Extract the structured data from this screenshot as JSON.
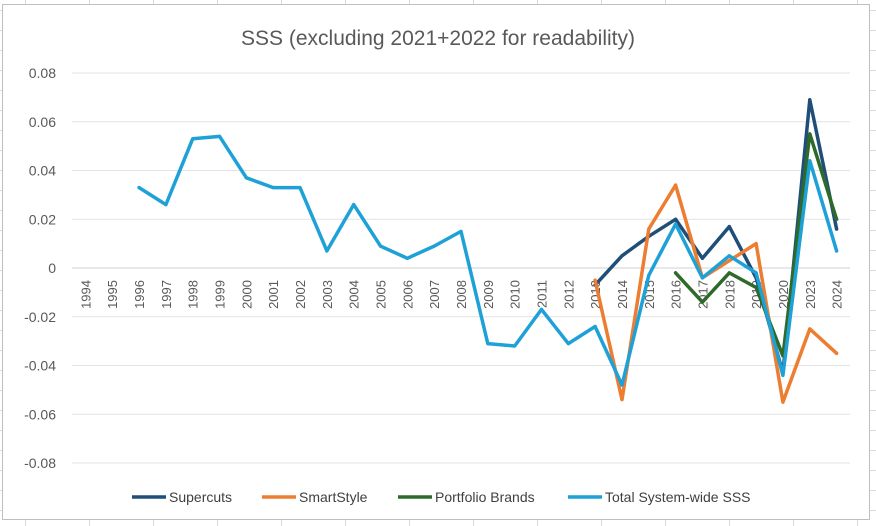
{
  "chart_data": {
    "type": "line",
    "title": "SSS (excluding 2021+2022 for readability)",
    "xlabel": "",
    "ylabel": "",
    "ylim": [
      -0.08,
      0.08
    ],
    "yticks": [
      "0.08",
      "0.06",
      "0.04",
      "0.02",
      "0",
      "-0.02",
      "-0.04",
      "-0.06",
      "-0.08"
    ],
    "ytick_values": [
      0.08,
      0.06,
      0.04,
      0.02,
      0,
      -0.02,
      -0.04,
      -0.06,
      -0.08
    ],
    "categories": [
      "1994",
      "1995",
      "1996",
      "1997",
      "1998",
      "1999",
      "2000",
      "2001",
      "2002",
      "2003",
      "2004",
      "2005",
      "2006",
      "2007",
      "2008",
      "2009",
      "2010",
      "2011",
      "2012",
      "2013",
      "2014",
      "2015",
      "2016",
      "2017",
      "2018",
      "2019",
      "2020",
      "2023",
      "2024"
    ],
    "legend_position": "bottom",
    "series": [
      {
        "name": "Supercuts",
        "color": "#1f4e79",
        "values": [
          null,
          null,
          null,
          null,
          null,
          null,
          null,
          null,
          null,
          null,
          null,
          null,
          null,
          null,
          null,
          null,
          null,
          null,
          null,
          -0.007,
          0.005,
          0.013,
          0.02,
          0.004,
          0.017,
          -0.004,
          -0.043,
          0.069,
          0.016
        ]
      },
      {
        "name": "SmartStyle",
        "color": "#ed7d31",
        "values": [
          null,
          null,
          null,
          null,
          null,
          null,
          null,
          null,
          null,
          null,
          null,
          null,
          null,
          null,
          null,
          null,
          null,
          null,
          null,
          -0.005,
          -0.054,
          0.016,
          0.034,
          -0.004,
          0.003,
          0.01,
          -0.055,
          -0.025,
          -0.035
        ]
      },
      {
        "name": "Portfolio Brands",
        "color": "#2e6b2a",
        "values": [
          null,
          null,
          null,
          null,
          null,
          null,
          null,
          null,
          null,
          null,
          null,
          null,
          null,
          null,
          null,
          null,
          null,
          null,
          null,
          null,
          null,
          null,
          -0.002,
          -0.014,
          -0.002,
          -0.008,
          -0.036,
          0.055,
          0.02
        ]
      },
      {
        "name": "Total System-wide SSS",
        "color": "#1ea1d6",
        "values": [
          null,
          null,
          0.033,
          0.026,
          0.053,
          0.054,
          0.037,
          0.033,
          0.033,
          0.007,
          0.026,
          0.009,
          0.004,
          0.009,
          0.015,
          -0.031,
          -0.032,
          -0.017,
          -0.031,
          -0.024,
          -0.048,
          -0.003,
          0.018,
          -0.004,
          0.005,
          -0.002,
          -0.044,
          0.044,
          0.007
        ]
      }
    ]
  }
}
